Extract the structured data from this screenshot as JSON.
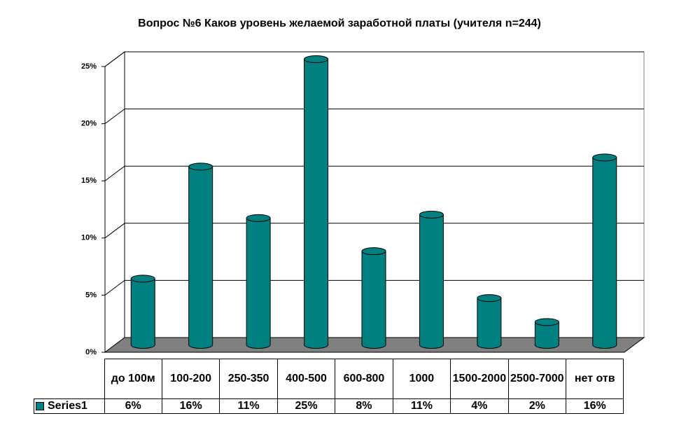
{
  "chart_data": {
    "type": "bar3d",
    "title": "Вопрос №6 Каков уровень желаемой заработной платы (учителя n=244)",
    "categories": [
      "до 100м",
      "100-200",
      "250-350",
      "400-500",
      "600-800",
      "1000",
      "1500-2000",
      "2500-7000",
      "нет отв"
    ],
    "series": [
      {
        "name": "Series1",
        "color": "#008080",
        "values": [
          5.8,
          15.6,
          11.1,
          25,
          8.2,
          11.4,
          4.1,
          2.0,
          16.4
        ],
        "value_labels": [
          "6%",
          "16%",
          "11%",
          "25%",
          "8%",
          "11%",
          "4%",
          "2%",
          "16%"
        ]
      }
    ],
    "ylim": [
      0,
      25
    ],
    "yticks": [
      {
        "value": 0,
        "label": "0%"
      },
      {
        "value": 5,
        "label": "5%"
      },
      {
        "value": 10,
        "label": "10%"
      },
      {
        "value": 15,
        "label": "15%"
      },
      {
        "value": 20,
        "label": "20%"
      },
      {
        "value": 25,
        "label": "25%"
      }
    ],
    "grid": true
  }
}
